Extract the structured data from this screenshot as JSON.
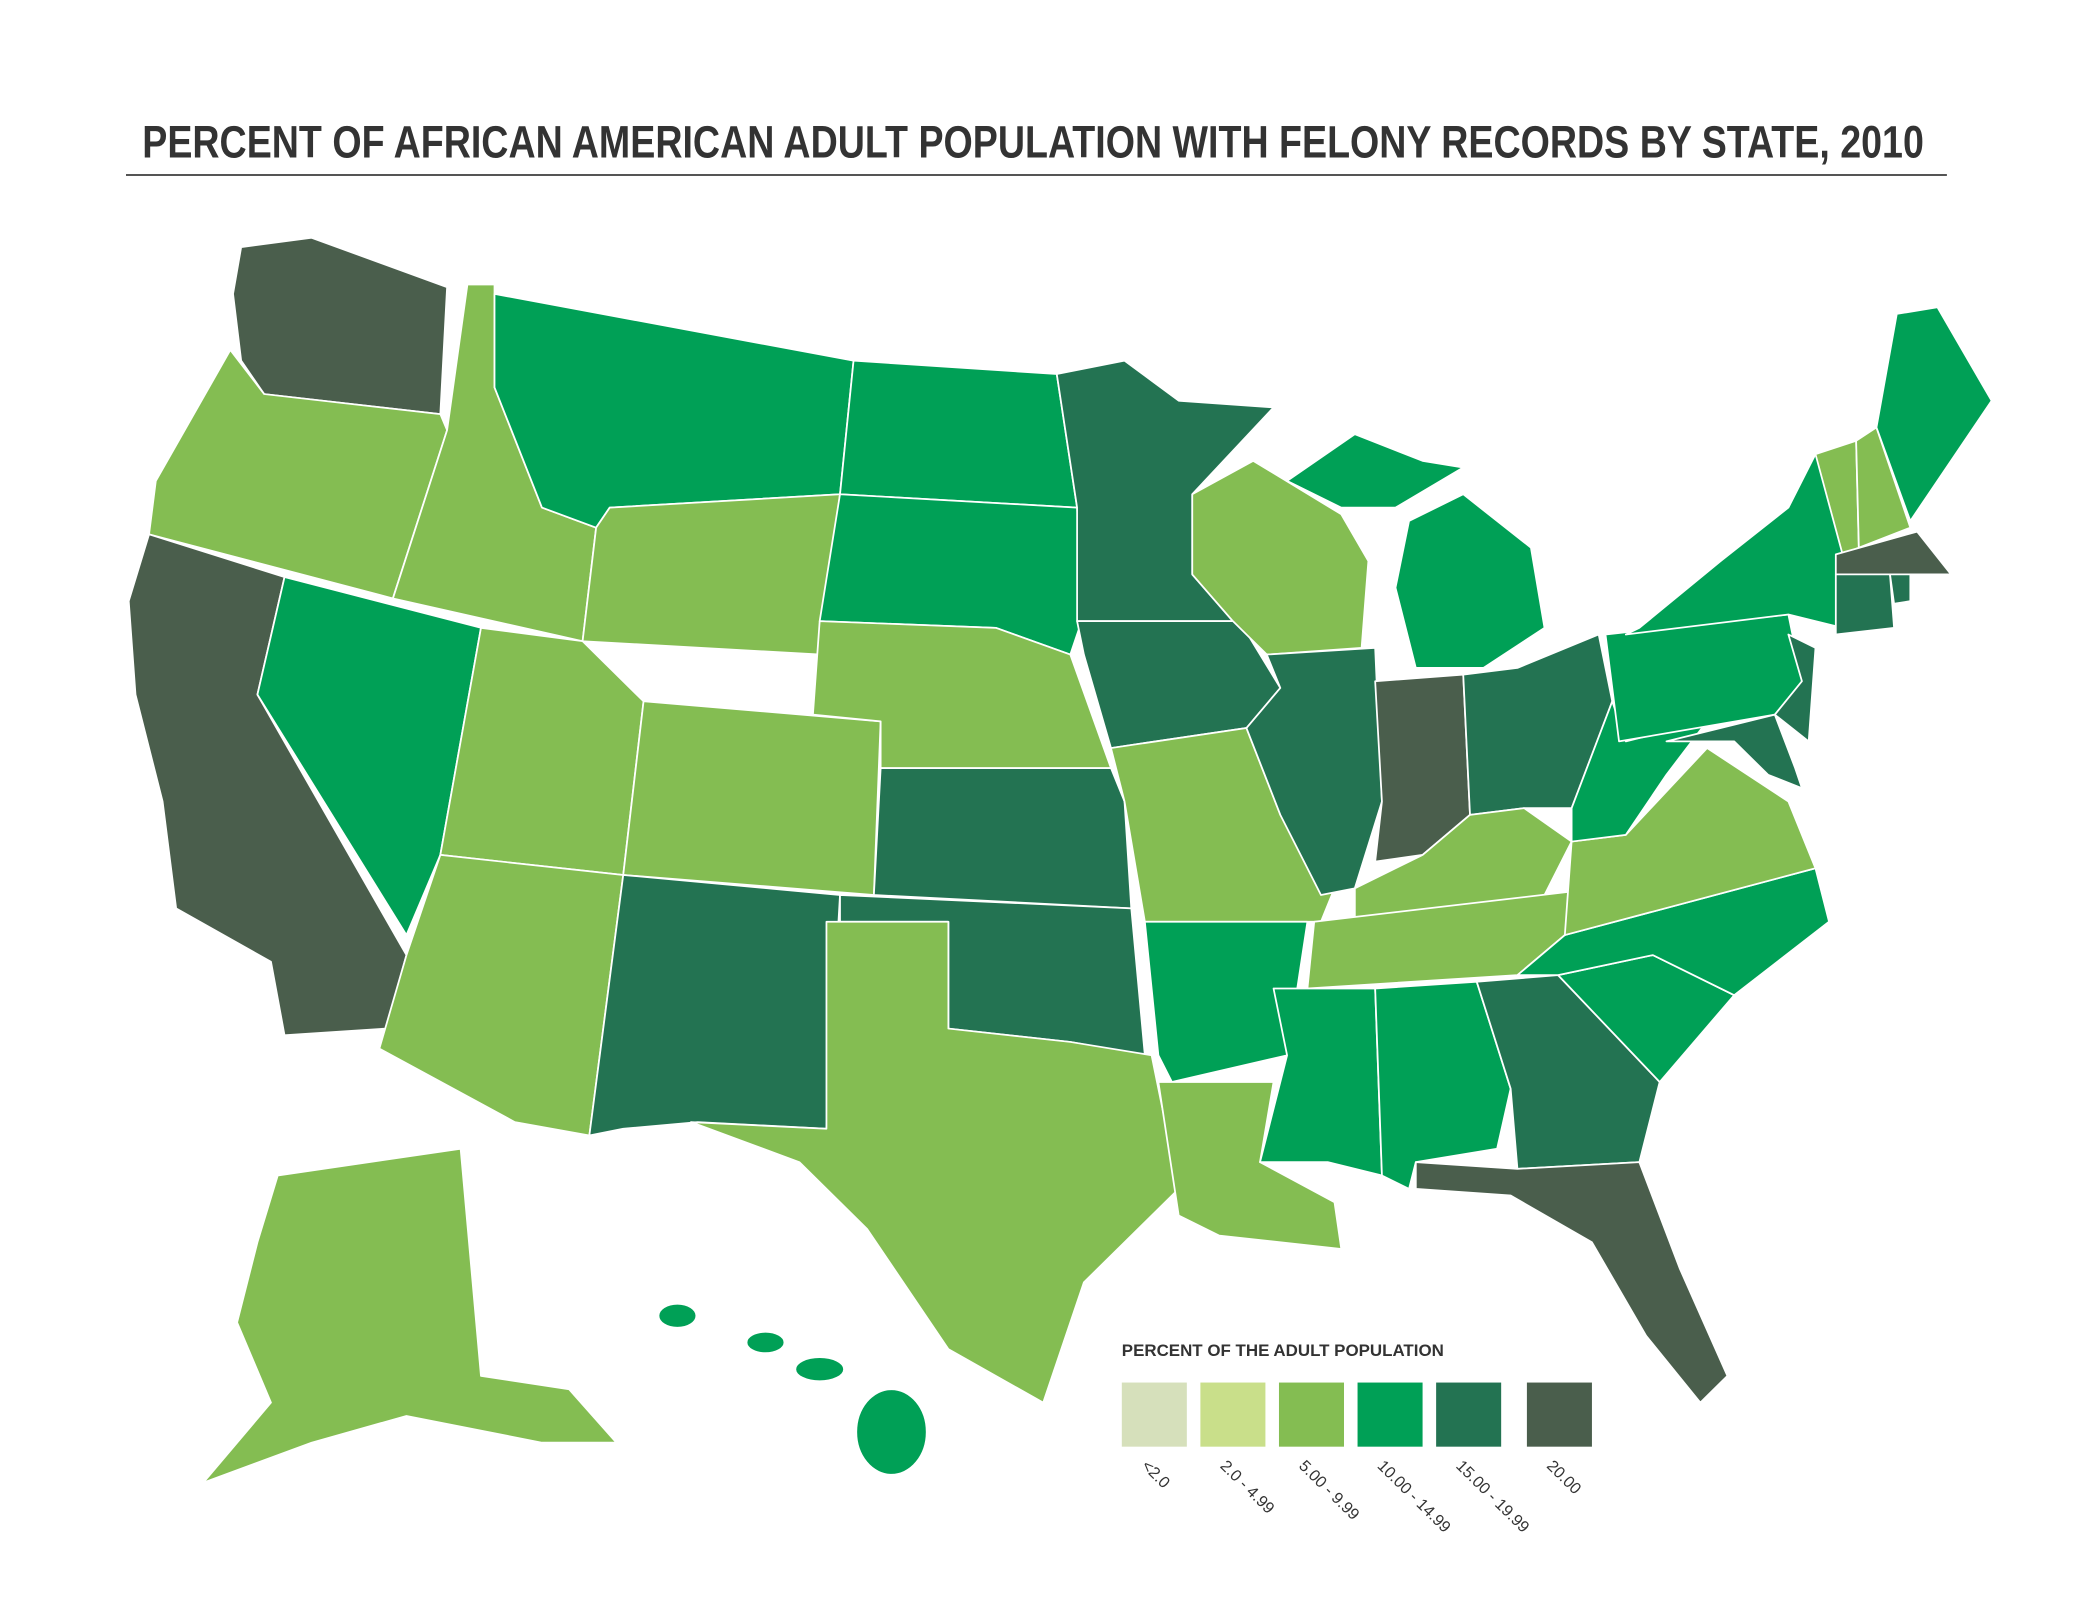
{
  "title": "PERCENT OF AFRICAN AMERICAN ADULT POPULATION WITH FELONY RECORDS BY STATE, 2010",
  "legend": {
    "title": "PERCENT OF THE ADULT POPULATION",
    "items": [
      {
        "label": "<2.0",
        "color": "#d6e0bb"
      },
      {
        "label": "2.0 - 4.99",
        "color": "#c9df8a"
      },
      {
        "label": "5.00 - 9.99",
        "color": "#84bd52"
      },
      {
        "label": "10.00 - 14.99",
        "color": "#00a056"
      },
      {
        "label": "15.00 - 19.99",
        "color": "#237352"
      },
      {
        "label": "20.00",
        "color": "#4a5e4c"
      }
    ]
  }
}
